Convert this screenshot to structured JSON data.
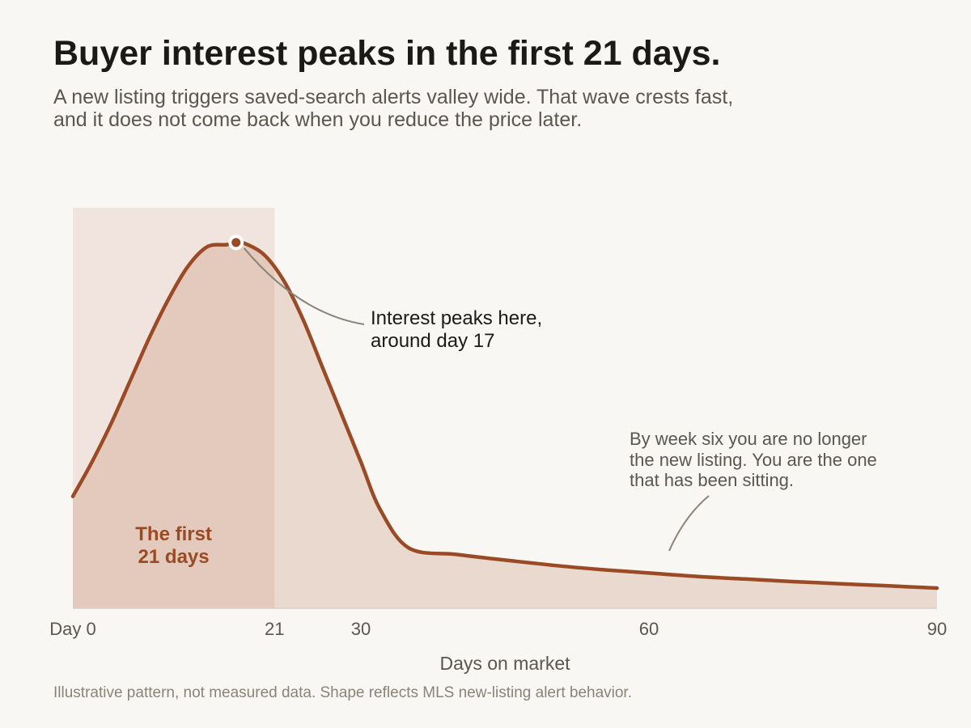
{
  "header": {
    "title": "Buyer interest peaks in the first 21 days.",
    "subtitle_lines": [
      "A new listing triggers saved-search alerts valley wide. That wave crests fast,",
      "and it does not come back when you reduce the price later."
    ]
  },
  "footnote": "Illustrative pattern, not measured data. Shape reflects MLS new-listing alert behavior.",
  "colors": {
    "curve": "#9a4a24",
    "area_fill": "#ead9ce",
    "band_fill": "#f1e4df",
    "band_overlap_fill": "#e3cabd",
    "band_label": "#9a4a24",
    "leader": "#8a8378",
    "axis": "#d8d2ca",
    "background": "#f9f7f4"
  },
  "chart_data": {
    "type": "area",
    "xlabel": "Days on market",
    "ylabel": "",
    "xlim": [
      0,
      90
    ],
    "ylim": [
      0,
      100
    ],
    "grid": false,
    "x_tick_labels": [
      {
        "x": 0,
        "label": "Day 0"
      },
      {
        "x": 21,
        "label": "21"
      },
      {
        "x": 30,
        "label": "30"
      },
      {
        "x": 60,
        "label": "60"
      },
      {
        "x": 90,
        "label": "90"
      }
    ],
    "series": [
      {
        "x": [
          0,
          2,
          4,
          6,
          8,
          10,
          12,
          14,
          16,
          17,
          18,
          20,
          22,
          24,
          26,
          28,
          30,
          32,
          35,
          40,
          45,
          50,
          55,
          60,
          65,
          70,
          75,
          80,
          85,
          90
        ],
        "values": [
          26,
          34,
          43,
          53,
          63,
          72,
          79.5,
          84,
          84.5,
          85,
          84.7,
          82,
          76,
          67,
          56,
          45,
          34,
          23,
          14,
          12.5,
          11.2,
          10,
          9,
          8.2,
          7.4,
          6.8,
          6.2,
          5.7,
          5.2,
          4.7
        ]
      }
    ],
    "highlight_band": {
      "x_start": 0,
      "x_end": 21,
      "label_lines": [
        "The first",
        "21 days"
      ]
    },
    "peak": {
      "x": 17,
      "y": 85
    },
    "annotations": {
      "peak_lines": [
        "Interest peaks here,",
        "around day 17"
      ],
      "tail_lines": [
        "By week six you are no longer",
        "the new listing. You are the one",
        "that has been sitting."
      ]
    }
  }
}
